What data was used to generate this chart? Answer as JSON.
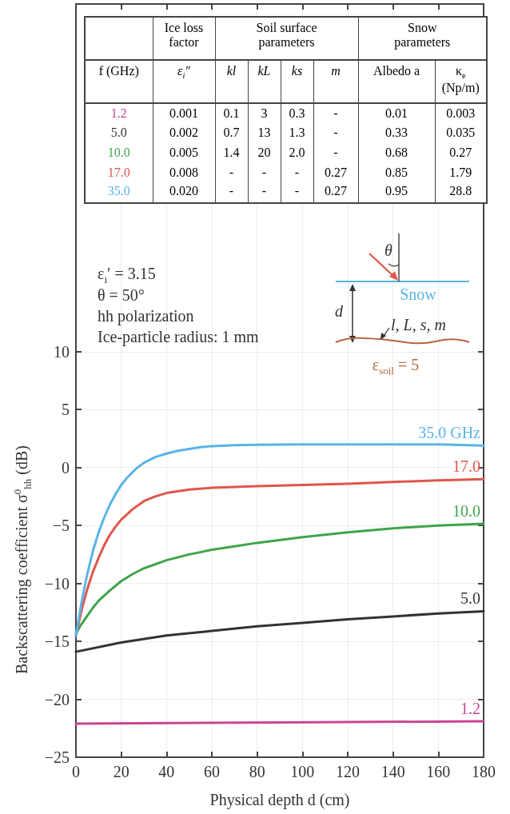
{
  "chart_data": {
    "type": "line",
    "xlabel": "Physical depth d (cm)",
    "ylabel": "Backscattering coefficient σ$^{0}$$_{hh}$ (dB)",
    "xlim": [
      0,
      180
    ],
    "xticks": [
      0,
      20,
      40,
      60,
      80,
      100,
      120,
      140,
      160,
      180
    ],
    "ylim": [
      -25,
      40
    ],
    "yticks": [
      -25,
      -20,
      -15,
      -10,
      -5,
      0,
      5,
      10
    ],
    "grid": true,
    "series": [
      {
        "name": "35.0 GHz",
        "color": "#5ab4e6",
        "x": [
          0,
          2.5,
          5,
          7.5,
          10,
          12.5,
          15,
          17.5,
          20,
          22.5,
          25,
          27.5,
          30,
          35,
          40,
          45,
          50,
          55,
          60,
          70,
          80,
          100,
          120,
          140,
          160,
          180
        ],
        "values": [
          -14.5,
          -11.6,
          -9.2,
          -7.2,
          -5.6,
          -4.3,
          -3.2,
          -2.3,
          -1.5,
          -0.9,
          -0.4,
          0.05,
          0.4,
          0.9,
          1.2,
          1.45,
          1.6,
          1.75,
          1.85,
          1.92,
          1.96,
          2.0,
          2.0,
          2.0,
          2.0,
          1.9
        ]
      },
      {
        "name": "17.0",
        "color": "#e0564a",
        "x": [
          0,
          2.5,
          5,
          7.5,
          10,
          12.5,
          15,
          17.5,
          20,
          25,
          30,
          35,
          40,
          50,
          60,
          80,
          100,
          120,
          140,
          160,
          180
        ],
        "values": [
          -14.5,
          -12.3,
          -10.5,
          -9.0,
          -7.8,
          -6.7,
          -5.8,
          -5.1,
          -4.5,
          -3.6,
          -2.9,
          -2.5,
          -2.2,
          -1.9,
          -1.75,
          -1.6,
          -1.5,
          -1.4,
          -1.25,
          -1.1,
          -1.0
        ]
      },
      {
        "name": "10.0",
        "color": "#3fa44a",
        "x": [
          0,
          2.5,
          5,
          7.5,
          10,
          15,
          20,
          25,
          30,
          40,
          50,
          60,
          70,
          80,
          100,
          120,
          140,
          160,
          180
        ],
        "values": [
          -14.3,
          -13.5,
          -12.8,
          -12.1,
          -11.5,
          -10.6,
          -9.8,
          -9.2,
          -8.7,
          -8.0,
          -7.5,
          -7.1,
          -6.8,
          -6.5,
          -6.0,
          -5.6,
          -5.25,
          -5.0,
          -4.85
        ]
      },
      {
        "name": "5.0",
        "color": "#333333",
        "x": [
          0,
          20,
          40,
          60,
          80,
          100,
          120,
          140,
          160,
          180
        ],
        "values": [
          -15.9,
          -15.1,
          -14.5,
          -14.1,
          -13.7,
          -13.4,
          -13.1,
          -12.85,
          -12.6,
          -12.4
        ]
      },
      {
        "name": "1.2",
        "color": "#c94595",
        "x": [
          0,
          90,
          180
        ],
        "values": [
          -22.1,
          -22.0,
          -21.9
        ]
      }
    ],
    "annotations": [
      "ε$_{i}$′ = 3.15",
      "θ = 50°",
      "hh polarization",
      "Ice-particle radius: 1 mm",
      "θ",
      "Snow",
      "d",
      "l, L, s, m",
      "ε$_{soil}$ = 5",
      "Ice loss factor",
      "Soil surface parameters",
      "Snow parameters",
      "f (GHz)",
      "ε$_{i}$″",
      "kl",
      "kL",
      "ks",
      "m",
      "Albedo a",
      "κ$_{e}$ (Np/m)",
      "1.2",
      "0.001",
      "0.1",
      "3",
      "0.3",
      "-",
      "0.01",
      "0.003",
      "5.0",
      "0.002",
      "0.7",
      "13",
      "1.3",
      "-",
      "0.33",
      "0.035",
      "10.0",
      "0.005",
      "1.4",
      "20",
      "2.0",
      "-",
      "0.68",
      "0.27",
      "17.0",
      "0.008",
      "-",
      "-",
      "-",
      "0.27",
      "0.85",
      "1.79",
      "35.0",
      "0.020",
      "-",
      "-",
      "-",
      "0.27",
      "0.95",
      "28.8"
    ]
  }
}
